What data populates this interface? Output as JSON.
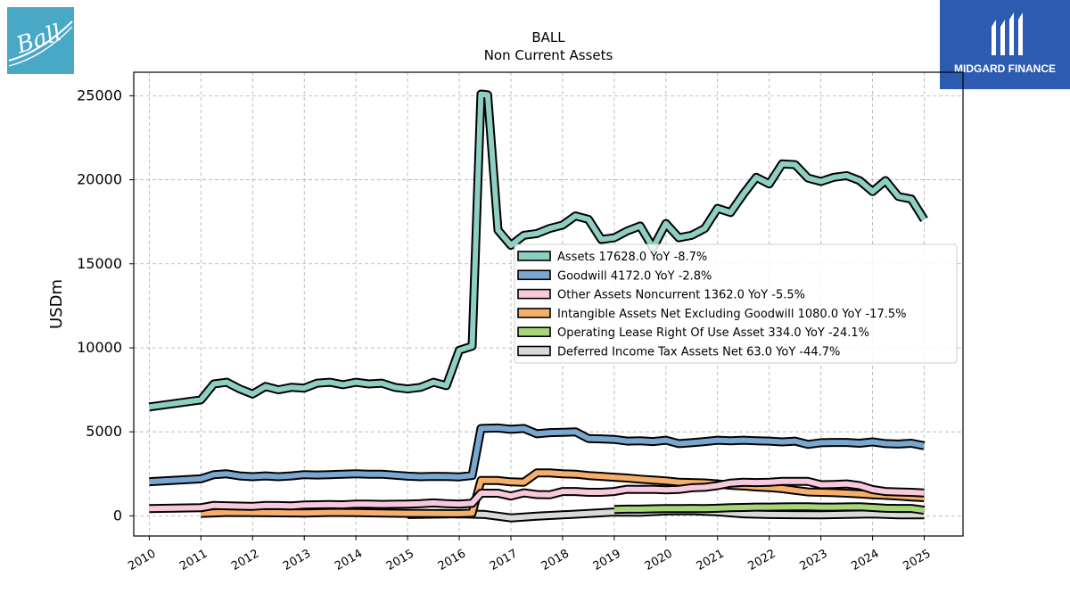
{
  "logos": {
    "left_text": "Ball",
    "left_color": "#4aa8c7",
    "right_text": "MIDGARD FINANCE",
    "right_color": "#2d5bb0"
  },
  "chart_data": {
    "type": "line",
    "title": "BALL",
    "subtitle": "Non Current  Assets",
    "ylabel": "USDm",
    "xlim": [
      2009.7,
      2025.75
    ],
    "ylim": [
      -1200,
      26400
    ],
    "yticks": [
      0,
      5000,
      10000,
      15000,
      20000,
      25000
    ],
    "xticks": [
      "2010",
      "2011",
      "2012",
      "2013",
      "2014",
      "2015",
      "2016",
      "2017",
      "2018",
      "2019",
      "2020",
      "2021",
      "2022",
      "2023",
      "2024",
      "2025"
    ],
    "grid": true,
    "legend_position": "center-right",
    "series": [
      {
        "name": "Assets",
        "legend": "Assets  17628.0 YoY -8.7%",
        "color": "#8ecfc3",
        "points": [
          [
            2010.0,
            6480
          ],
          [
            2011.0,
            6900
          ],
          [
            2011.25,
            7850
          ],
          [
            2011.5,
            7950
          ],
          [
            2011.75,
            7550
          ],
          [
            2012.0,
            7250
          ],
          [
            2012.25,
            7700
          ],
          [
            2012.5,
            7500
          ],
          [
            2012.75,
            7650
          ],
          [
            2013.0,
            7600
          ],
          [
            2013.25,
            7900
          ],
          [
            2013.5,
            7950
          ],
          [
            2013.75,
            7800
          ],
          [
            2014.0,
            7950
          ],
          [
            2014.25,
            7850
          ],
          [
            2014.5,
            7900
          ],
          [
            2014.75,
            7650
          ],
          [
            2015.0,
            7550
          ],
          [
            2015.25,
            7650
          ],
          [
            2015.5,
            7950
          ],
          [
            2015.75,
            7750
          ],
          [
            2016.0,
            9850
          ],
          [
            2016.25,
            10100
          ],
          [
            2016.42,
            25100
          ],
          [
            2016.55,
            25050
          ],
          [
            2016.75,
            17000
          ],
          [
            2017.0,
            16100
          ],
          [
            2017.25,
            16700
          ],
          [
            2017.5,
            16800
          ],
          [
            2017.75,
            17100
          ],
          [
            2018.0,
            17300
          ],
          [
            2018.25,
            17850
          ],
          [
            2018.5,
            17650
          ],
          [
            2018.75,
            16450
          ],
          [
            2019.0,
            16550
          ],
          [
            2019.25,
            16950
          ],
          [
            2019.5,
            17250
          ],
          [
            2019.75,
            15950
          ],
          [
            2020.0,
            17400
          ],
          [
            2020.25,
            16550
          ],
          [
            2020.5,
            16700
          ],
          [
            2020.75,
            17100
          ],
          [
            2021.0,
            18300
          ],
          [
            2021.25,
            18050
          ],
          [
            2021.5,
            19150
          ],
          [
            2021.75,
            20150
          ],
          [
            2022.0,
            19750
          ],
          [
            2022.25,
            20950
          ],
          [
            2022.5,
            20900
          ],
          [
            2022.75,
            20100
          ],
          [
            2023.0,
            19900
          ],
          [
            2023.25,
            20150
          ],
          [
            2023.5,
            20250
          ],
          [
            2023.75,
            19950
          ],
          [
            2024.0,
            19300
          ],
          [
            2024.25,
            19950
          ],
          [
            2024.5,
            19000
          ],
          [
            2024.75,
            18850
          ],
          [
            2025.0,
            17628
          ]
        ]
      },
      {
        "name": "Goodwill",
        "legend": "Goodwill  4172.0 YoY -2.8%",
        "color": "#7aa7d0",
        "points": [
          [
            2010.0,
            2030
          ],
          [
            2011.0,
            2200
          ],
          [
            2011.25,
            2450
          ],
          [
            2011.5,
            2500
          ],
          [
            2011.75,
            2380
          ],
          [
            2012.0,
            2330
          ],
          [
            2012.25,
            2380
          ],
          [
            2012.5,
            2330
          ],
          [
            2012.75,
            2380
          ],
          [
            2013.0,
            2450
          ],
          [
            2013.25,
            2430
          ],
          [
            2013.5,
            2450
          ],
          [
            2013.75,
            2480
          ],
          [
            2014.0,
            2500
          ],
          [
            2014.25,
            2480
          ],
          [
            2014.5,
            2480
          ],
          [
            2014.75,
            2420
          ],
          [
            2015.0,
            2360
          ],
          [
            2015.25,
            2330
          ],
          [
            2015.5,
            2350
          ],
          [
            2015.75,
            2340
          ],
          [
            2016.0,
            2320
          ],
          [
            2016.25,
            2400
          ],
          [
            2016.42,
            5200
          ],
          [
            2016.75,
            5230
          ],
          [
            2017.0,
            5150
          ],
          [
            2017.25,
            5200
          ],
          [
            2017.5,
            4880
          ],
          [
            2017.75,
            4950
          ],
          [
            2018.0,
            4970
          ],
          [
            2018.25,
            5000
          ],
          [
            2018.5,
            4600
          ],
          [
            2018.75,
            4580
          ],
          [
            2019.0,
            4550
          ],
          [
            2019.25,
            4450
          ],
          [
            2019.5,
            4470
          ],
          [
            2019.75,
            4420
          ],
          [
            2020.0,
            4500
          ],
          [
            2020.25,
            4300
          ],
          [
            2020.5,
            4350
          ],
          [
            2020.75,
            4420
          ],
          [
            2021.0,
            4500
          ],
          [
            2021.25,
            4470
          ],
          [
            2021.5,
            4500
          ],
          [
            2021.75,
            4470
          ],
          [
            2022.0,
            4450
          ],
          [
            2022.25,
            4400
          ],
          [
            2022.5,
            4450
          ],
          [
            2022.75,
            4250
          ],
          [
            2023.0,
            4350
          ],
          [
            2023.25,
            4370
          ],
          [
            2023.5,
            4370
          ],
          [
            2023.75,
            4320
          ],
          [
            2024.0,
            4400
          ],
          [
            2024.25,
            4300
          ],
          [
            2024.5,
            4270
          ],
          [
            2024.75,
            4320
          ],
          [
            2025.0,
            4172
          ]
        ]
      },
      {
        "name": "Other Assets Noncurrent",
        "legend": "Other Assets Noncurrent  1362.0 YoY -5.5%",
        "color": "#f8c9dc",
        "points": [
          [
            2010.0,
            430
          ],
          [
            2011.0,
            480
          ],
          [
            2011.25,
            620
          ],
          [
            2011.5,
            600
          ],
          [
            2011.75,
            580
          ],
          [
            2012.0,
            560
          ],
          [
            2012.25,
            620
          ],
          [
            2012.5,
            610
          ],
          [
            2012.75,
            590
          ],
          [
            2013.0,
            640
          ],
          [
            2013.25,
            660
          ],
          [
            2013.5,
            670
          ],
          [
            2013.75,
            660
          ],
          [
            2014.0,
            700
          ],
          [
            2014.25,
            700
          ],
          [
            2014.5,
            680
          ],
          [
            2014.75,
            690
          ],
          [
            2015.0,
            700
          ],
          [
            2015.25,
            720
          ],
          [
            2015.5,
            770
          ],
          [
            2015.75,
            720
          ],
          [
            2016.0,
            700
          ],
          [
            2016.25,
            750
          ],
          [
            2016.42,
            1350
          ],
          [
            2016.75,
            1350
          ],
          [
            2017.0,
            1180
          ],
          [
            2017.25,
            1370
          ],
          [
            2017.5,
            1270
          ],
          [
            2017.75,
            1250
          ],
          [
            2018.0,
            1450
          ],
          [
            2018.25,
            1450
          ],
          [
            2018.5,
            1400
          ],
          [
            2018.75,
            1400
          ],
          [
            2019.0,
            1450
          ],
          [
            2019.25,
            1580
          ],
          [
            2019.5,
            1570
          ],
          [
            2019.75,
            1580
          ],
          [
            2020.0,
            1550
          ],
          [
            2020.25,
            1570
          ],
          [
            2020.5,
            1670
          ],
          [
            2020.75,
            1700
          ],
          [
            2021.0,
            1800
          ],
          [
            2021.25,
            1950
          ],
          [
            2021.5,
            2000
          ],
          [
            2021.75,
            1980
          ],
          [
            2022.0,
            2000
          ],
          [
            2022.25,
            2050
          ],
          [
            2022.5,
            2050
          ],
          [
            2022.75,
            2050
          ],
          [
            2023.0,
            1850
          ],
          [
            2023.25,
            1870
          ],
          [
            2023.5,
            1900
          ],
          [
            2023.75,
            1800
          ],
          [
            2024.0,
            1560
          ],
          [
            2024.25,
            1450
          ],
          [
            2024.5,
            1420
          ],
          [
            2024.75,
            1400
          ],
          [
            2025.0,
            1362
          ]
        ]
      },
      {
        "name": "Intangible Assets Net Excluding Goodwill",
        "legend": "Intangible Assets Net Excluding Goodwill  1080.0 YoY -17.5%",
        "color": "#f6ae6b",
        "points": [
          [
            2011.0,
            150
          ],
          [
            2011.5,
            200
          ],
          [
            2012.0,
            190
          ],
          [
            2012.5,
            180
          ],
          [
            2013.0,
            170
          ],
          [
            2013.5,
            200
          ],
          [
            2014.0,
            190
          ],
          [
            2014.5,
            170
          ],
          [
            2015.0,
            150
          ],
          [
            2015.5,
            140
          ],
          [
            2016.0,
            130
          ],
          [
            2016.25,
            160
          ],
          [
            2016.42,
            2100
          ],
          [
            2016.75,
            2100
          ],
          [
            2017.0,
            2020
          ],
          [
            2017.25,
            2000
          ],
          [
            2017.5,
            2550
          ],
          [
            2017.75,
            2550
          ],
          [
            2018.0,
            2500
          ],
          [
            2018.25,
            2480
          ],
          [
            2018.5,
            2400
          ],
          [
            2018.75,
            2350
          ],
          [
            2019.0,
            2300
          ],
          [
            2019.25,
            2250
          ],
          [
            2019.5,
            2180
          ],
          [
            2019.75,
            2130
          ],
          [
            2020.0,
            2080
          ],
          [
            2020.25,
            2000
          ],
          [
            2020.5,
            1980
          ],
          [
            2020.75,
            1960
          ],
          [
            2021.0,
            1900
          ],
          [
            2021.25,
            1820
          ],
          [
            2021.5,
            1780
          ],
          [
            2021.75,
            1720
          ],
          [
            2022.0,
            1680
          ],
          [
            2022.25,
            1620
          ],
          [
            2022.5,
            1520
          ],
          [
            2022.75,
            1420
          ],
          [
            2023.0,
            1400
          ],
          [
            2023.25,
            1380
          ],
          [
            2023.5,
            1350
          ],
          [
            2023.75,
            1310
          ],
          [
            2024.0,
            1260
          ],
          [
            2024.25,
            1220
          ],
          [
            2024.5,
            1180
          ],
          [
            2024.75,
            1120
          ],
          [
            2025.0,
            1080
          ]
        ]
      },
      {
        "name": "Operating Lease Right Of Use Asset",
        "legend": "Operating Lease Right Of Use Asset  334.0 YoY -24.1%",
        "color": "#a8d47a",
        "points": [
          [
            2019.0,
            380
          ],
          [
            2019.25,
            400
          ],
          [
            2019.5,
            400
          ],
          [
            2019.75,
            420
          ],
          [
            2020.0,
            430
          ],
          [
            2020.25,
            430
          ],
          [
            2020.5,
            440
          ],
          [
            2020.75,
            430
          ],
          [
            2021.0,
            450
          ],
          [
            2021.25,
            480
          ],
          [
            2021.5,
            500
          ],
          [
            2021.75,
            520
          ],
          [
            2022.0,
            520
          ],
          [
            2022.25,
            530
          ],
          [
            2022.5,
            540
          ],
          [
            2022.75,
            540
          ],
          [
            2023.0,
            520
          ],
          [
            2023.25,
            520
          ],
          [
            2023.5,
            530
          ],
          [
            2023.75,
            540
          ],
          [
            2024.0,
            500
          ],
          [
            2024.25,
            450
          ],
          [
            2024.5,
            440
          ],
          [
            2024.75,
            440
          ],
          [
            2025.0,
            334
          ]
        ]
      },
      {
        "name": "Deferred Income Tax Assets Net",
        "legend": "Deferred Income Tax Assets Net  63.0 YoY -44.7%",
        "color": "#d9d9d6",
        "points": [
          [
            2015.0,
            80
          ],
          [
            2015.5,
            100
          ],
          [
            2016.0,
            120
          ],
          [
            2016.5,
            80
          ],
          [
            2017.0,
            -120
          ],
          [
            2017.5,
            -20
          ],
          [
            2018.0,
            60
          ],
          [
            2018.5,
            140
          ],
          [
            2019.0,
            230
          ],
          [
            2019.5,
            210
          ],
          [
            2020.0,
            290
          ],
          [
            2020.5,
            310
          ],
          [
            2021.0,
            240
          ],
          [
            2021.5,
            120
          ],
          [
            2022.0,
            80
          ],
          [
            2022.5,
            70
          ],
          [
            2023.0,
            60
          ],
          [
            2023.5,
            90
          ],
          [
            2024.0,
            110
          ],
          [
            2024.5,
            60
          ],
          [
            2025.0,
            63
          ]
        ]
      }
    ]
  }
}
